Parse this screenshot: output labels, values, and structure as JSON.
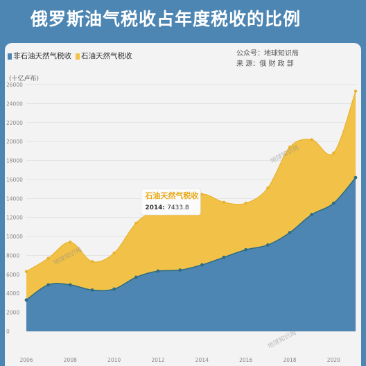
{
  "title": "俄罗斯油气税收占年度税收的比例",
  "legend": {
    "non_oil": "非石油天然气税收",
    "oil": "石油天然气税收"
  },
  "source": {
    "line1_label": "公众号：",
    "line1_value": "地球知识局",
    "line2_label": "来    源：",
    "line2_value": "俄 财 政 部"
  },
  "unit_label": "(十亿卢布)",
  "watermark": "地球知识局",
  "colors": {
    "non_oil": "#4d86b2",
    "oil": "#f2c248",
    "line": "#2e6d86",
    "background": "#4d86b2",
    "panel": "#f3f3f3"
  },
  "chart_data": {
    "type": "area",
    "stacked": true,
    "x": [
      2006,
      2007,
      2008,
      2009,
      2010,
      2011,
      2012,
      2013,
      2014,
      2015,
      2016,
      2017,
      2018,
      2019,
      2020,
      2021
    ],
    "x_ticks": [
      2006,
      2008,
      2010,
      2012,
      2014,
      2016,
      2018,
      2020
    ],
    "y_ticks": [
      0,
      2000,
      4000,
      6000,
      8000,
      10000,
      12000,
      14000,
      16000,
      18000,
      20000,
      22000,
      24000,
      26000
    ],
    "ylim": [
      0,
      26000
    ],
    "series": [
      {
        "name": "非石油天然气税收",
        "values": [
          3300,
          4900,
          4900,
          4350,
          4450,
          5700,
          6350,
          6450,
          7000,
          7800,
          8600,
          9100,
          10400,
          12300,
          13500,
          16200
        ]
      },
      {
        "name": "石油天然气税收",
        "values": [
          3000,
          2800,
          4500,
          3000,
          3800,
          5700,
          6550,
          6650,
          7433.8,
          5800,
          4900,
          6000,
          9000,
          7900,
          5300,
          9100
        ]
      }
    ],
    "annotation": {
      "label": "石油天然气税收",
      "year": "2014",
      "value": "7433.8"
    }
  }
}
